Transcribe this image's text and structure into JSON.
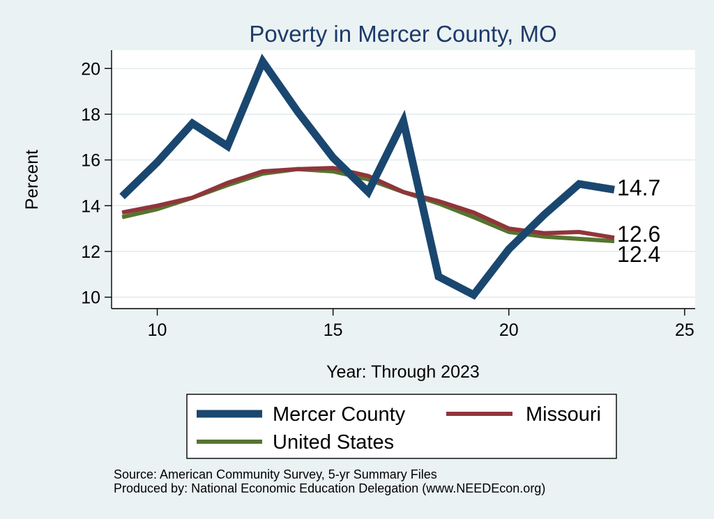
{
  "chart_data": {
    "type": "line",
    "title": "Poverty in Mercer County, MO",
    "xlabel": "Year: Through 2023",
    "ylabel": "Percent",
    "xlim": [
      8.7,
      25.3
    ],
    "ylim": [
      9.5,
      20.8
    ],
    "x_ticks": [
      10,
      15,
      20,
      25
    ],
    "y_ticks": [
      10,
      12,
      14,
      16,
      18,
      20
    ],
    "grid": true,
    "legend_position": "bottom",
    "x": [
      9,
      10,
      11,
      12,
      13,
      14,
      15,
      16,
      17,
      18,
      19,
      20,
      21,
      22,
      23
    ],
    "series": [
      {
        "name": "Mercer County",
        "color": "#1a476f",
        "values": [
          14.4,
          15.9,
          17.6,
          16.6,
          20.3,
          18.1,
          16.1,
          14.6,
          17.7,
          10.9,
          10.1,
          12.1,
          13.6,
          14.95,
          14.7
        ],
        "end_label": "14.7"
      },
      {
        "name": "Missouri",
        "color": "#90353b",
        "values": [
          13.7,
          14.0,
          14.35,
          15.0,
          15.5,
          15.6,
          15.65,
          15.3,
          14.6,
          14.2,
          13.7,
          13.0,
          12.8,
          12.85,
          12.6
        ],
        "end_label": "12.6"
      },
      {
        "name": "United States",
        "color": "#55752f",
        "values": [
          13.5,
          13.85,
          14.35,
          14.9,
          15.4,
          15.6,
          15.5,
          15.15,
          14.6,
          14.1,
          13.5,
          12.85,
          12.65,
          12.55,
          12.45
        ],
        "end_label": "12.4"
      }
    ]
  },
  "footer": {
    "source": "Source: American Community Survey, 5-yr Summary Files",
    "produced_by": "Produced by: National Economic Education Delegation (www.NEEDEcon.org)"
  }
}
